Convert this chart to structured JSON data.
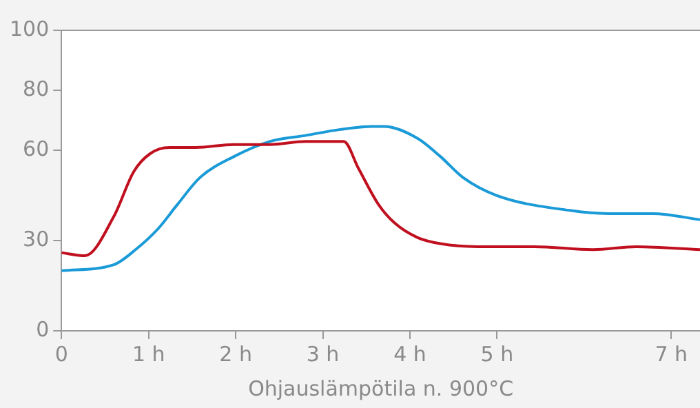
{
  "chart_data": {
    "type": "line",
    "xlabel": "Ohjauslämpötila n. 900°C",
    "xlim": [
      0,
      7.33
    ],
    "xticks": [
      0,
      {
        "value": 1,
        "label": "1 h"
      },
      {
        "value": 2,
        "label": "2 h"
      },
      {
        "value": 3,
        "label": "3 h"
      },
      {
        "value": 4,
        "label": "4 h"
      },
      {
        "value": 5,
        "label": "5 h"
      },
      {
        "value": 7,
        "label": "7 h"
      }
    ],
    "ylim": [
      0,
      100
    ],
    "yticks": [
      0,
      30,
      60,
      80,
      100
    ],
    "grid": false,
    "legend": false,
    "marker": "none",
    "line_style": "solid",
    "series": [
      {
        "color": "#c0101f",
        "x": [
          0,
          0.27,
          0.6,
          0.83,
          1.02,
          1.24,
          1.54,
          1.98,
          2.39,
          2.8,
          3.2,
          3.24,
          3.41,
          3.64,
          3.82,
          4.09,
          4.35,
          4.78,
          5.43,
          6.1,
          6.6,
          7.33
        ],
        "values": [
          26,
          25,
          38,
          53,
          59,
          61,
          61,
          62,
          62,
          63,
          63,
          63,
          54,
          42,
          36,
          31,
          29,
          28,
          28,
          27,
          28,
          27
        ]
      },
      {
        "color": "#1a9ad6",
        "x": [
          0,
          0.6,
          0.85,
          1.11,
          1.33,
          1.59,
          1.98,
          2.39,
          2.8,
          3.2,
          3.56,
          3.7,
          4.09,
          4.35,
          4.61,
          5,
          5.85,
          6.28,
          6.79,
          7.33
        ],
        "values": [
          20,
          22,
          27,
          34,
          42,
          51,
          58,
          63,
          65,
          67,
          68,
          68,
          64,
          58,
          51,
          45,
          40,
          39,
          39,
          37
        ]
      }
    ]
  }
}
